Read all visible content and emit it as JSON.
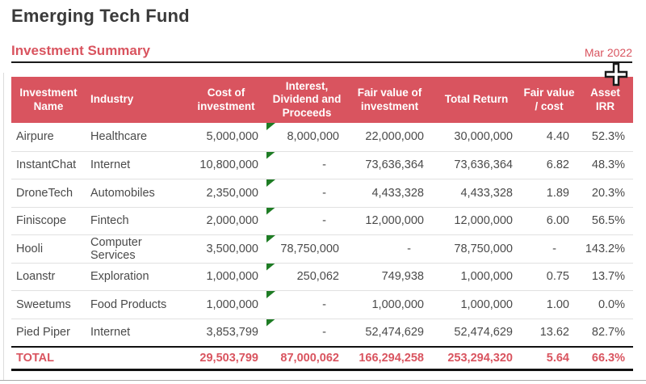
{
  "page": {
    "title": "Emerging Tech Fund",
    "section_title": "Investment Summary",
    "period": "Mar 2022"
  },
  "colors": {
    "accent_red": "#d9545f",
    "header_text": "#ffffff",
    "body_text": "#4a4a4a",
    "title_text": "#3a3a3a",
    "error_flag_green": "#1e7c24",
    "row_divider": "#e1e1e1"
  },
  "icons": {
    "error_flag": "excel-error-flag-triangle",
    "cursor": "excel-cross-cursor"
  },
  "table": {
    "columns": [
      {
        "key": "name",
        "label": "Investment Name",
        "align": "left",
        "header_align": "center"
      },
      {
        "key": "industry",
        "label": "Industry",
        "align": "left",
        "header_align": "left"
      },
      {
        "key": "cost",
        "label": "Cost of investment",
        "align": "right",
        "header_align": "center"
      },
      {
        "key": "interest",
        "label": "Interest, Dividend and Proceeds",
        "align": "right",
        "header_align": "center"
      },
      {
        "key": "fair_value",
        "label": "Fair value of investment",
        "align": "right",
        "header_align": "center"
      },
      {
        "key": "total_return",
        "label": "Total Return",
        "align": "right",
        "header_align": "center"
      },
      {
        "key": "fv_cost",
        "label": "Fair value / cost",
        "align": "right",
        "header_align": "center"
      },
      {
        "key": "asset_irr",
        "label": "Asset IRR",
        "align": "right",
        "header_align": "center"
      }
    ],
    "rows": [
      [
        "Airpure",
        "Healthcare",
        "5,000,000",
        "8,000,000",
        "22,000,000",
        "30,000,000",
        "4.40",
        "52.3%"
      ],
      [
        "InstantChat",
        "Internet",
        "10,800,000",
        "-",
        "73,636,364",
        "73,636,364",
        "6.82",
        "48.3%"
      ],
      [
        "DroneTech",
        "Automobiles",
        "2,350,000",
        "-",
        "4,433,328",
        "4,433,328",
        "1.89",
        "20.3%"
      ],
      [
        "Finiscope",
        "Fintech",
        "2,000,000",
        "-",
        "12,000,000",
        "12,000,000",
        "6.00",
        "56.5%"
      ],
      [
        "Hooli",
        "Computer Services",
        "3,500,000",
        "78,750,000",
        "-",
        "78,750,000",
        "-",
        "143.2%"
      ],
      [
        "Loanstr",
        "Exploration",
        "1,000,000",
        "250,062",
        "749,938",
        "1,000,000",
        "0.75",
        "13.7%"
      ],
      [
        "Sweetums",
        "Food Products",
        "1,000,000",
        "-",
        "1,000,000",
        "1,000,000",
        "1.00",
        "0.0%"
      ],
      [
        "Pied Piper",
        "Internet",
        "3,853,799",
        "-",
        "52,474,629",
        "52,474,629",
        "13.62",
        "82.7%"
      ]
    ],
    "total": [
      "TOTAL",
      "",
      "29,503,799",
      "87,000,062",
      "166,294,258",
      "253,294,320",
      "5.64",
      "66.3%"
    ]
  }
}
